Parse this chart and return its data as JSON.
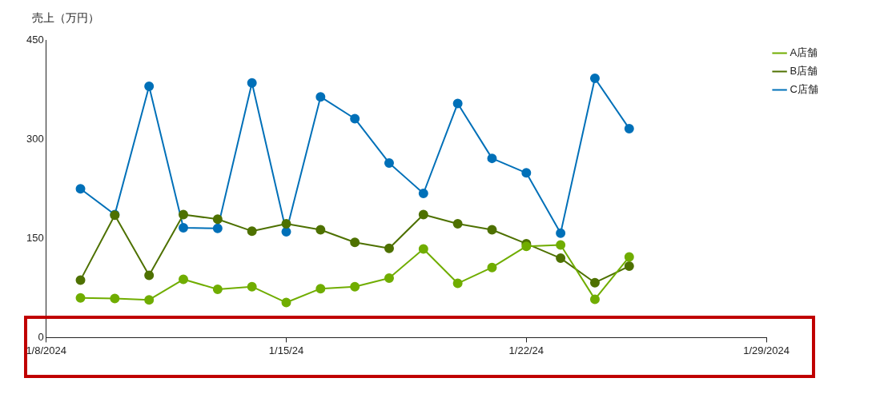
{
  "chart_data": {
    "type": "line",
    "ylabel": "売上（万円）",
    "x": [
      "2024-01-09",
      "2024-01-10",
      "2024-01-11",
      "2024-01-12",
      "2024-01-13",
      "2024-01-14",
      "2024-01-15",
      "2024-01-16",
      "2024-01-17",
      "2024-01-18",
      "2024-01-19",
      "2024-01-20",
      "2024-01-21",
      "2024-01-22",
      "2024-01-23",
      "2024-01-24",
      "2024-01-25"
    ],
    "xlim": [
      "2024-01-08",
      "2024-01-29"
    ],
    "xticks": [
      {
        "value": "2024-01-08",
        "label": "1/8/2024"
      },
      {
        "value": "2024-01-15",
        "label": "1/15/24"
      },
      {
        "value": "2024-01-22",
        "label": "1/22/24"
      },
      {
        "value": "2024-01-29",
        "label": "1/29/2024"
      }
    ],
    "ylim": [
      0,
      450
    ],
    "yticks": [
      0,
      150,
      300,
      450
    ],
    "series": [
      {
        "name": "A店舗",
        "color": "#70ad00",
        "values": [
          60,
          59,
          57,
          88,
          73,
          77,
          53,
          74,
          77,
          90,
          134,
          82,
          106,
          138,
          140,
          58,
          122
        ]
      },
      {
        "name": "B店舗",
        "color": "#4e7100",
        "values": [
          87,
          185,
          94,
          186,
          179,
          161,
          172,
          163,
          144,
          135,
          186,
          172,
          163,
          142,
          120,
          83,
          108
        ]
      },
      {
        "name": "C店舗",
        "color": "#0070b8",
        "values": [
          225,
          186,
          380,
          166,
          165,
          385,
          160,
          364,
          331,
          264,
          218,
          354,
          271,
          249,
          158,
          392,
          316
        ]
      }
    ],
    "grid": false,
    "legend": "top right",
    "marker": "circle",
    "line_style": "solid"
  }
}
